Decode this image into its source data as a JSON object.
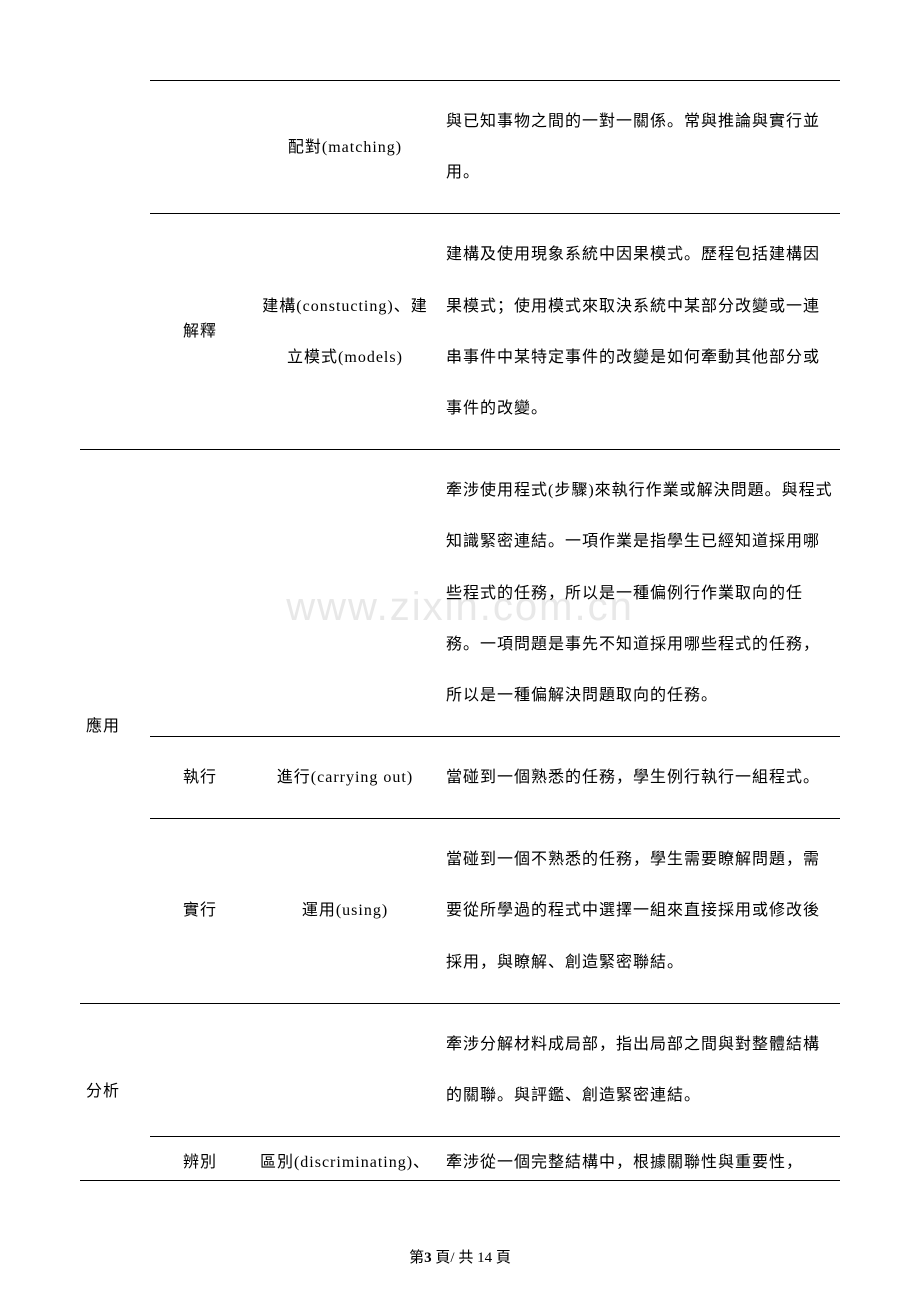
{
  "watermark": "www.zixin.com.cn",
  "footer": {
    "prefix": "第",
    "page_current": "3",
    "middle": "頁/ 共",
    "page_total": "14",
    "suffix": "頁"
  },
  "table": {
    "rows": [
      {
        "c1": "",
        "c1_span": 2,
        "c2": "",
        "c3": "配對(matching)",
        "c4": "與已知事物之間的一對一關係。常與推論與實行並用。"
      },
      {
        "c2": "解釋",
        "c3": "建構(constucting)、建立模式(models)",
        "c4": "建構及使用現象系統中因果模式。歷程包括建構因果模式；使用模式來取決系統中某部分改變或一連串事件中某特定事件的改變是如何牽動其他部分或事件的改變。"
      },
      {
        "c1": "應用",
        "c1_span": 3,
        "c1_border": true,
        "c2": "",
        "c3": "",
        "c4": "牽涉使用程式(步驟)來執行作業或解決問題。與程式知識緊密連結。一項作業是指學生已經知道採用哪些程式的任務，所以是一種偏例行作業取向的任務。一項問題是事先不知道採用哪些程式的任務，所以是一種偏解決問題取向的任務。"
      },
      {
        "c2": "執行",
        "c3": "進行(carrying out)",
        "c4": "當碰到一個熟悉的任務，學生例行執行一組程式。"
      },
      {
        "c2": "實行",
        "c3": "運用(using)",
        "c4": "當碰到一個不熟悉的任務，學生需要瞭解問題，需要從所學過的程式中選擇一組來直接採用或修改後採用，與瞭解、創造緊密聯結。"
      },
      {
        "c1": "分析",
        "c1_span": 2,
        "c1_border": true,
        "c2": "",
        "c3": "",
        "c4": "牽涉分解材料成局部，指出局部之間與對整體結構的關聯。與評鑑、創造緊密連結。"
      },
      {
        "c2": "辨別",
        "c3": "區別(discriminating)、",
        "c4": "牽涉從一個完整結構中，根據關聯性與重要性，",
        "last": true
      }
    ]
  }
}
